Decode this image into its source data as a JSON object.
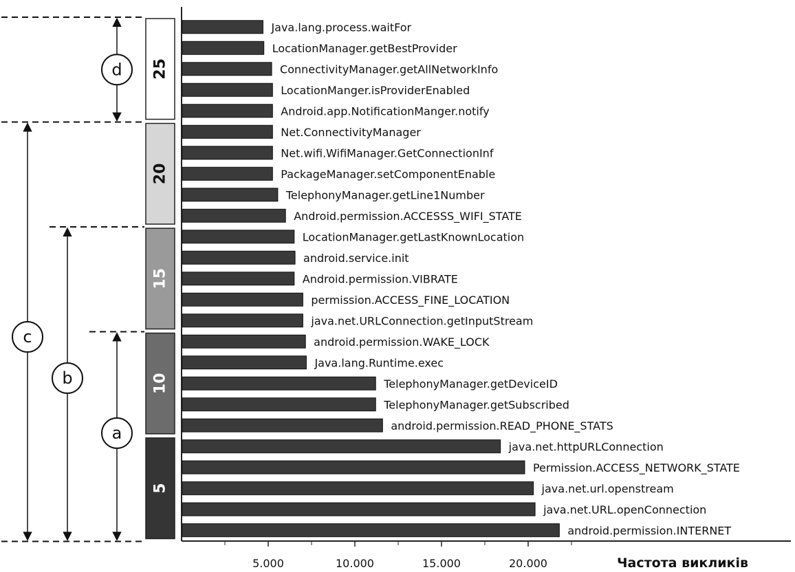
{
  "chart_data": {
    "type": "bar",
    "orientation": "horizontal",
    "xlabel": "Частота викликів",
    "xlim": [
      0,
      23500
    ],
    "x_ticks": [
      {
        "value": 5000,
        "label": "5.000"
      },
      {
        "value": 10000,
        "label": "10.000"
      },
      {
        "value": 15000,
        "label": "15.000"
      },
      {
        "value": 20000,
        "label": "20.000"
      }
    ],
    "bar_color": "#3a3a3a",
    "categories": [
      "Java.lang.process.waitFor",
      "LocationManager.getBestProvider",
      "ConnectivityManager.getAllNetworkInfo",
      "LocationManger.isProviderEnabled",
      "Android.app.NotificationManger.notify",
      "Net.ConnectivityManager",
      "Net.wifi.WifiManager.GetConnectionInf",
      "PackageManager.setComponentEnable",
      "TelephonyManager.getLine1Number",
      "Android.permission.ACCESSS_WIFI_STATE",
      "LocationManager.getLastKnownLocation",
      "android.service.init",
      "Android.permission.VIBRATE",
      "permission.ACCESS_FINE_LOCATION",
      "java.net.URLConnection.getInputStream",
      "android.permission.WAKE_LOCK",
      "Java.lang.Runtime.exec",
      "TelephonyManager.getDeviceID",
      "TelephonyManager.getSubscribed",
      "android.permission.READ_PHONE_STATS",
      "java.net.httpURLConnection",
      "Permission.ACCESS_NETWORK_STATE",
      "java.net.url.openstream",
      "java.net.URL.openConnection",
      "android.permission.INTERNET"
    ],
    "values": [
      4700,
      4750,
      5200,
      5250,
      5250,
      5250,
      5250,
      5250,
      5550,
      6000,
      6500,
      6550,
      6500,
      7000,
      7000,
      7150,
      7200,
      11200,
      11200,
      11600,
      18400,
      19800,
      20300,
      20400,
      21800
    ],
    "groups": [
      {
        "label": "25",
        "start": 0,
        "end": 4,
        "fill": "#ffffff",
        "text_color": "#111111"
      },
      {
        "label": "20",
        "start": 5,
        "end": 9,
        "fill": "#d6d6d6",
        "text_color": "#111111"
      },
      {
        "label": "15",
        "start": 10,
        "end": 14,
        "fill": "#9a9a9a",
        "text_color": "#ffffff"
      },
      {
        "label": "10",
        "start": 15,
        "end": 19,
        "fill": "#6c6c6c",
        "text_color": "#ffffff"
      },
      {
        "label": "5",
        "start": 20,
        "end": 24,
        "fill": "#353535",
        "text_color": "#ffffff"
      }
    ],
    "ranges": [
      {
        "letter": "d",
        "from": 0,
        "to": 4
      },
      {
        "letter": "c",
        "from": 5,
        "to": 24
      },
      {
        "letter": "b",
        "from": 10,
        "to": 24
      },
      {
        "letter": "a",
        "from": 15,
        "to": 24
      }
    ]
  }
}
